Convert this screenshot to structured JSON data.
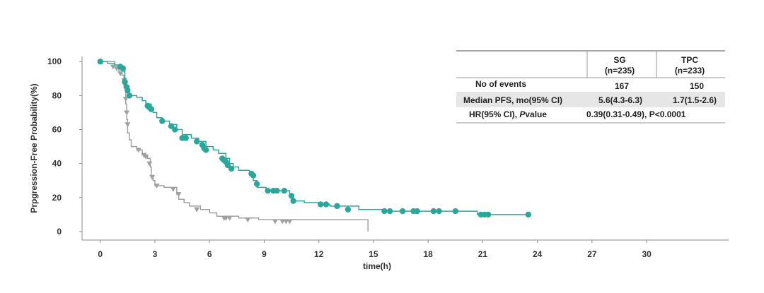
{
  "chart_data": {
    "type": "line",
    "subtype": "kaplan-meier",
    "title": "",
    "xlabel": "time(h)",
    "ylabel": "Prpgression-Free Probability(%)",
    "xlim": [
      -1,
      34.5
    ],
    "ylim": [
      -5,
      103
    ],
    "xticks": [
      0,
      3,
      6,
      9,
      12,
      15,
      18,
      21,
      24,
      27,
      30
    ],
    "yticks": [
      0,
      20,
      40,
      60,
      80,
      100
    ],
    "series": [
      {
        "name": "SG",
        "color": "#2aa79b",
        "censor_marker": "circle",
        "steps": [
          [
            0,
            100
          ],
          [
            0.4,
            99
          ],
          [
            0.8,
            98
          ],
          [
            1.1,
            97
          ],
          [
            1.2,
            96
          ],
          [
            1.3,
            94
          ],
          [
            1.35,
            90
          ],
          [
            1.4,
            86
          ],
          [
            1.5,
            83
          ],
          [
            1.6,
            80
          ],
          [
            2.0,
            79
          ],
          [
            2.3,
            77
          ],
          [
            2.5,
            75
          ],
          [
            2.8,
            73
          ],
          [
            2.9,
            70
          ],
          [
            3.1,
            67
          ],
          [
            3.4,
            65
          ],
          [
            3.8,
            63
          ],
          [
            4.2,
            60
          ],
          [
            4.5,
            57
          ],
          [
            5.0,
            55
          ],
          [
            5.4,
            53
          ],
          [
            5.8,
            50
          ],
          [
            6.2,
            48
          ],
          [
            6.5,
            46
          ],
          [
            6.9,
            43
          ],
          [
            7.1,
            40
          ],
          [
            7.3,
            38
          ],
          [
            7.6,
            36
          ],
          [
            8.2,
            34
          ],
          [
            8.4,
            30
          ],
          [
            8.6,
            26
          ],
          [
            9.1,
            24
          ],
          [
            10.4,
            21
          ],
          [
            10.6,
            18
          ],
          [
            11.2,
            17
          ],
          [
            12.2,
            16
          ],
          [
            12.6,
            15
          ],
          [
            14.2,
            13
          ],
          [
            15.6,
            12
          ],
          [
            20.7,
            10
          ],
          [
            23.5,
            10
          ]
        ],
        "censored": [
          [
            0,
            100
          ],
          [
            1.1,
            97
          ],
          [
            1.25,
            96
          ],
          [
            1.35,
            88
          ],
          [
            1.45,
            85
          ],
          [
            1.5,
            83
          ],
          [
            1.6,
            80
          ],
          [
            2.6,
            74
          ],
          [
            2.7,
            73
          ],
          [
            2.8,
            72
          ],
          [
            3.4,
            65
          ],
          [
            3.9,
            62
          ],
          [
            4.1,
            60
          ],
          [
            4.5,
            55
          ],
          [
            4.7,
            55
          ],
          [
            5.3,
            53
          ],
          [
            5.6,
            51
          ],
          [
            5.7,
            49
          ],
          [
            5.8,
            48
          ],
          [
            6.7,
            43
          ],
          [
            6.8,
            42
          ],
          [
            6.9,
            41
          ],
          [
            7.0,
            39
          ],
          [
            7.2,
            37
          ],
          [
            8.3,
            34
          ],
          [
            8.4,
            33
          ],
          [
            8.6,
            28
          ],
          [
            9.2,
            24
          ],
          [
            9.5,
            24
          ],
          [
            9.7,
            24
          ],
          [
            10.1,
            24
          ],
          [
            10.5,
            21
          ],
          [
            10.6,
            18
          ],
          [
            12.1,
            16
          ],
          [
            12.4,
            16
          ],
          [
            13.0,
            15
          ],
          [
            13.6,
            13
          ],
          [
            15.6,
            12
          ],
          [
            15.9,
            12
          ],
          [
            16.6,
            12
          ],
          [
            17.2,
            12
          ],
          [
            17.4,
            12
          ],
          [
            18.3,
            12
          ],
          [
            18.6,
            12
          ],
          [
            19.5,
            12
          ],
          [
            20.9,
            10
          ],
          [
            21.1,
            10
          ],
          [
            21.3,
            10
          ],
          [
            23.5,
            10
          ]
        ]
      },
      {
        "name": "TPC",
        "color": "#a0a0a0",
        "censor_marker": "triangle",
        "steps": [
          [
            0,
            100
          ],
          [
            0.8,
            97
          ],
          [
            1.0,
            95
          ],
          [
            1.2,
            92
          ],
          [
            1.3,
            85
          ],
          [
            1.4,
            75
          ],
          [
            1.45,
            66
          ],
          [
            1.5,
            58
          ],
          [
            1.6,
            54
          ],
          [
            1.7,
            50
          ],
          [
            2.0,
            48
          ],
          [
            2.3,
            45
          ],
          [
            2.6,
            43
          ],
          [
            2.75,
            38
          ],
          [
            2.8,
            33
          ],
          [
            2.9,
            30
          ],
          [
            3.0,
            27
          ],
          [
            3.5,
            26
          ],
          [
            4.2,
            22
          ],
          [
            4.3,
            19
          ],
          [
            4.6,
            17
          ],
          [
            4.9,
            15
          ],
          [
            5.5,
            13
          ],
          [
            6.0,
            11
          ],
          [
            6.4,
            9
          ],
          [
            7.6,
            8
          ],
          [
            8.7,
            7
          ],
          [
            14.7,
            7
          ],
          [
            14.7,
            0
          ]
        ],
        "censored": [
          [
            0.7,
            97
          ],
          [
            0.9,
            96
          ],
          [
            1.1,
            93
          ],
          [
            1.3,
            89
          ],
          [
            1.4,
            78
          ],
          [
            1.45,
            70
          ],
          [
            1.5,
            63
          ],
          [
            2.1,
            48
          ],
          [
            2.4,
            45
          ],
          [
            2.5,
            44
          ],
          [
            2.7,
            40
          ],
          [
            2.85,
            32
          ],
          [
            3.1,
            27
          ],
          [
            4.0,
            25
          ],
          [
            4.3,
            22
          ],
          [
            5.3,
            13
          ],
          [
            6.8,
            8
          ],
          [
            6.9,
            8
          ],
          [
            7.1,
            8
          ],
          [
            8.1,
            7
          ],
          [
            9.6,
            6
          ],
          [
            10.0,
            6
          ],
          [
            10.2,
            6
          ],
          [
            10.4,
            6
          ]
        ]
      }
    ]
  },
  "table": {
    "headers": [
      {
        "line1": "SG",
        "line2": "(n=235)",
        "color": "#2aa79b"
      },
      {
        "line1": "TPC",
        "line2": "(n=233)",
        "color": "#222222"
      }
    ],
    "rows": [
      {
        "label": "No of events",
        "values": [
          "167",
          "150"
        ],
        "shaded": false
      },
      {
        "label": "Median PFS, mo(95% CI)",
        "values": [
          "5.6(4.3-6.3)",
          "1.7(1.5-2.6)"
        ],
        "shaded": true
      }
    ],
    "hr_label_prefix": "HR(95% CI), ",
    "hr_label_italic": "P",
    "hr_label_suffix": "value",
    "hr_value": "0.39(0.31-0.49), P<0.0001"
  }
}
